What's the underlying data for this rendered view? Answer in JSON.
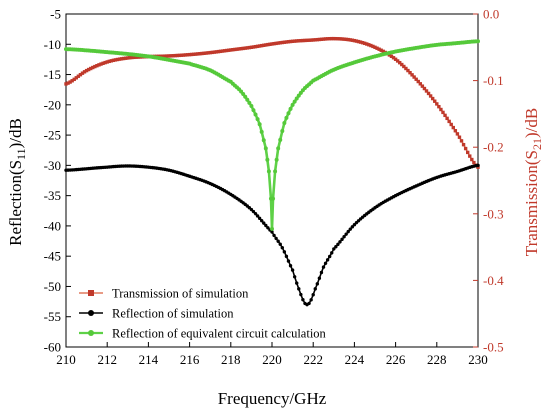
{
  "chart_data": {
    "type": "line",
    "xlabel": "Frequency/GHz",
    "ylabel_left": "Reflection(S11)/dB",
    "ylabel_right": "Transmission(S21)/dB",
    "xlim": [
      210,
      230
    ],
    "ylim_left": [
      -60,
      -5
    ],
    "ylim_right": [
      -0.5,
      0.0
    ],
    "x_ticks": [
      "210",
      "212",
      "214",
      "216",
      "218",
      "220",
      "222",
      "224",
      "226",
      "228",
      "230"
    ],
    "y_left_ticks": [
      "-5",
      "-10",
      "-15",
      "-20",
      "-25",
      "-30",
      "-35",
      "-40",
      "-45",
      "-50",
      "-55",
      "-60"
    ],
    "y_right_ticks": [
      "0.0",
      "-0.1",
      "-0.2",
      "-0.3",
      "-0.4",
      "-0.5"
    ],
    "grid": false,
    "legend_position": "bottom-left",
    "series": [
      {
        "name": "Transmission of simulation",
        "axis": "right",
        "color": "#c0392b",
        "line_color": "#e07a5f",
        "x": [
          210,
          211,
          212,
          213,
          214,
          215,
          216,
          217,
          218,
          219,
          220,
          221,
          222,
          223,
          224,
          225,
          226,
          227,
          228,
          229,
          230
        ],
        "y": [
          -0.105,
          -0.085,
          -0.072,
          -0.066,
          -0.064,
          -0.063,
          -0.061,
          -0.058,
          -0.054,
          -0.05,
          -0.045,
          -0.041,
          -0.039,
          -0.037,
          -0.04,
          -0.05,
          -0.068,
          -0.098,
          -0.135,
          -0.18,
          -0.23
        ]
      },
      {
        "name": "Reflection of simulation",
        "axis": "left",
        "color": "#000000",
        "line_color": "#000000",
        "x": [
          210,
          212,
          213,
          214,
          215,
          216,
          217,
          218,
          219,
          220,
          220.5,
          221,
          221.3,
          221.6,
          221.7,
          221.8,
          222.1,
          222.5,
          223,
          224,
          225,
          226,
          227,
          228,
          229,
          230
        ],
        "y": [
          -30.8,
          -30.3,
          -30.1,
          -30.3,
          -30.8,
          -31.8,
          -33.0,
          -34.8,
          -37.3,
          -41.0,
          -43.6,
          -47.3,
          -50.4,
          -52.8,
          -53.0,
          -52.8,
          -50.4,
          -46.8,
          -43.8,
          -39.8,
          -37.0,
          -35.0,
          -33.4,
          -32.0,
          -31.0,
          -30.0
        ]
      },
      {
        "name": "Reflection of  equivalent circuit calculation",
        "axis": "left",
        "color": "#55c93a",
        "line_color": "#5ed147",
        "x": [
          210,
          212,
          214,
          216,
          217,
          218,
          218.5,
          219,
          219.4,
          219.7,
          219.85,
          219.95,
          220.0,
          220.05,
          220.15,
          220.3,
          220.6,
          221,
          221.5,
          222,
          223,
          224,
          225,
          226,
          227,
          228,
          229,
          230
        ],
        "y": [
          -10.8,
          -11.3,
          -12.0,
          -13.2,
          -14.3,
          -16.2,
          -17.8,
          -20.2,
          -23.2,
          -27.2,
          -31.0,
          -35.5,
          -40.5,
          -35.5,
          -31.0,
          -27.2,
          -23.0,
          -20.0,
          -17.6,
          -16.0,
          -14.2,
          -13.0,
          -12.0,
          -11.2,
          -10.6,
          -10.1,
          -9.8,
          -9.5
        ]
      }
    ]
  }
}
